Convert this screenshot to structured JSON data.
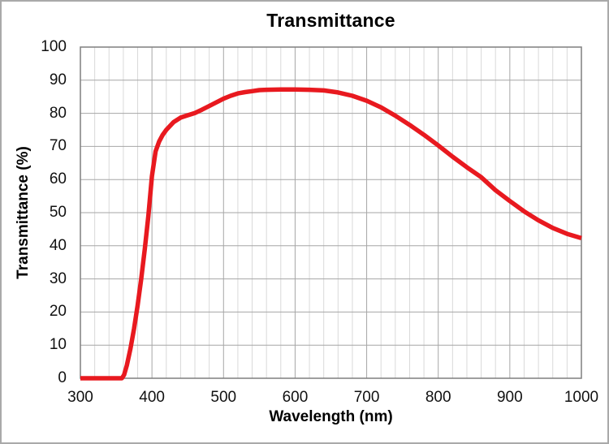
{
  "style": {
    "curve_red": "#e8191f",
    "grid_minor": "#d9d9d9",
    "grid_major": "#a6a6a6",
    "plot_border": "#7f7f7f",
    "outer_border": "#a9a9a9",
    "background": "#ffffff",
    "text": "#000000"
  },
  "chart_data": {
    "type": "line",
    "title": "Transmittance",
    "xlabel": "Wavelength (nm)",
    "ylabel": "Transmittance (%)",
    "xlim": [
      300,
      1000
    ],
    "ylim": [
      0,
      100
    ],
    "x_major_ticks": [
      300,
      400,
      500,
      600,
      700,
      800,
      900,
      1000
    ],
    "x_minor_step": 20,
    "y_major_ticks": [
      0,
      10,
      20,
      30,
      40,
      50,
      60,
      70,
      80,
      90,
      100
    ],
    "grid": "x: minor+major, y: major only",
    "legend": "none",
    "series": [
      {
        "name": "Transmittance",
        "color": "#e8191f",
        "x": [
          300,
          310,
          320,
          330,
          340,
          350,
          358,
          361,
          365,
          370,
          375,
          380,
          385,
          390,
          395,
          400,
          405,
          410,
          415,
          420,
          430,
          440,
          450,
          460,
          470,
          480,
          490,
          500,
          510,
          520,
          530,
          540,
          550,
          560,
          580,
          600,
          620,
          640,
          660,
          680,
          700,
          720,
          740,
          760,
          780,
          800,
          820,
          840,
          860,
          880,
          900,
          920,
          940,
          960,
          980,
          1000
        ],
        "y": [
          0,
          0,
          0,
          0,
          0,
          0,
          0,
          1,
          4,
          9,
          15,
          22,
          30,
          39,
          49,
          61,
          68.5,
          71.5,
          73.5,
          75,
          77.3,
          78.7,
          79.4,
          80.1,
          81.1,
          82.2,
          83.3,
          84.4,
          85.3,
          86,
          86.4,
          86.7,
          87,
          87.1,
          87.2,
          87.2,
          87.1,
          86.9,
          86.3,
          85.3,
          83.8,
          81.8,
          79.3,
          76.5,
          73.5,
          70.3,
          66.9,
          63.7,
          60.7,
          56.8,
          53.5,
          50.4,
          47.7,
          45.4,
          43.6,
          42.3
        ]
      }
    ]
  }
}
